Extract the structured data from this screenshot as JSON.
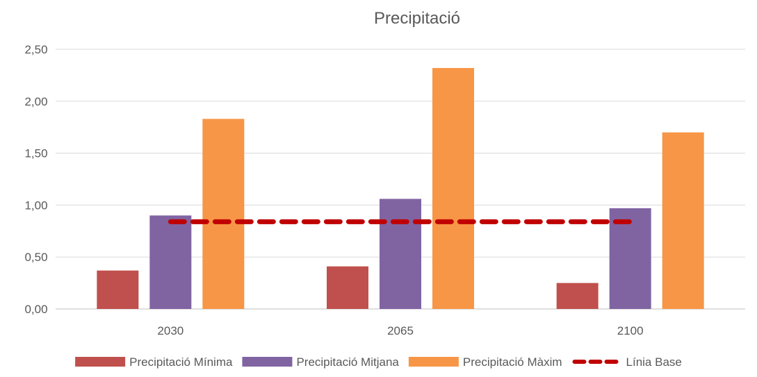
{
  "chart_data": {
    "type": "bar",
    "title": "Precipitació",
    "xlabel": "",
    "ylabel": "",
    "categories": [
      "2030",
      "2065",
      "2100"
    ],
    "ylim": [
      0,
      2.5
    ],
    "yticks": [
      "0,00",
      "0,50",
      "1,00",
      "1,50",
      "2,00",
      "2,50"
    ],
    "grid": true,
    "legend_position": "bottom",
    "series": [
      {
        "name": "Precipitació Mínima",
        "kind": "bar",
        "color": "#C0504D",
        "values": [
          0.37,
          0.41,
          0.25
        ]
      },
      {
        "name": "Precipitació Mitjana",
        "kind": "bar",
        "color": "#8064A2",
        "values": [
          0.9,
          1.06,
          0.97
        ]
      },
      {
        "name": "Precipitació Màxim",
        "kind": "bar",
        "color": "#F79646",
        "values": [
          1.83,
          2.32,
          1.7
        ]
      },
      {
        "name": "Línia Base",
        "kind": "line",
        "style": "dashed",
        "color": "#C00000",
        "values": [
          0.84,
          0.84,
          0.84
        ]
      }
    ]
  }
}
